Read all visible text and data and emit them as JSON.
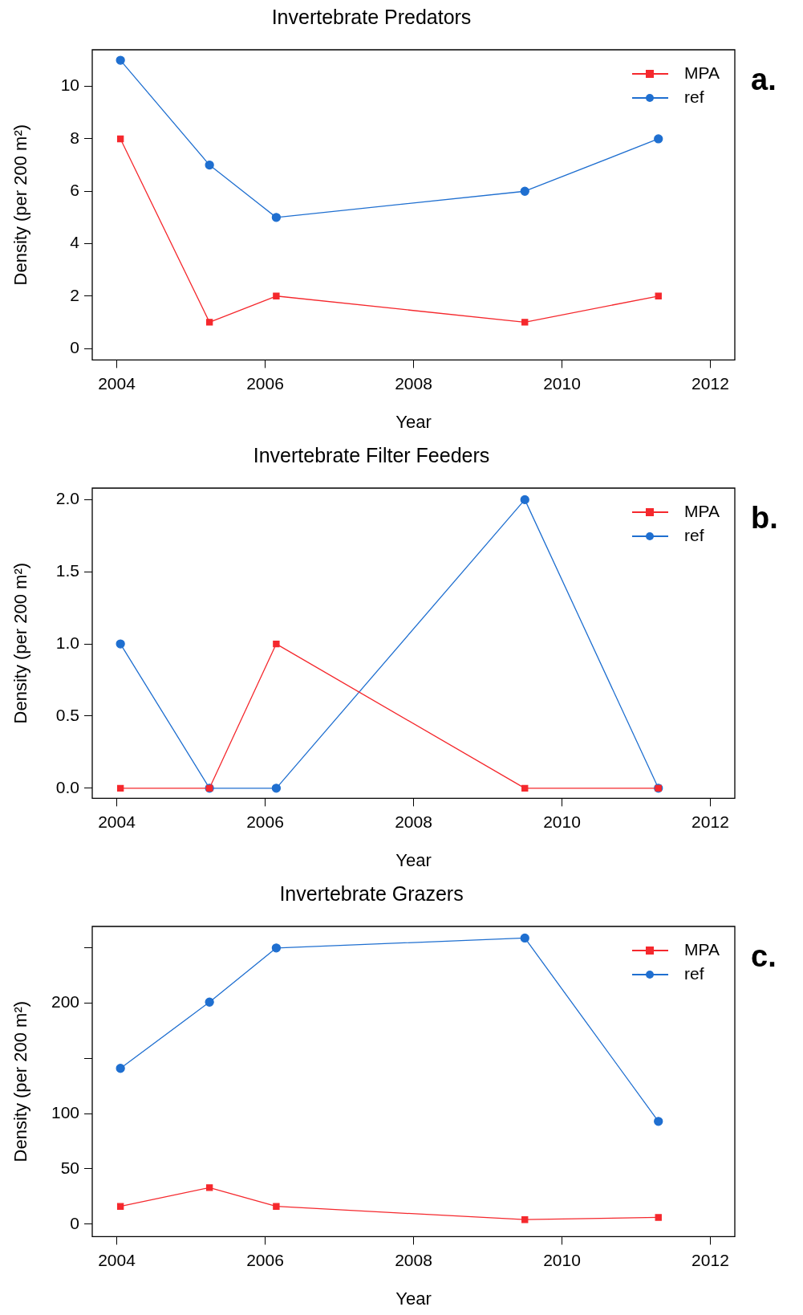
{
  "chart_data": [
    {
      "type": "line",
      "title": "Invertebrate Predators",
      "xlabel": "Year",
      "ylabel": "Density (per 200 m²)",
      "annotations": [
        "a."
      ],
      "x": [
        2004.05,
        2005.25,
        2006.15,
        2009.5,
        2011.3
      ],
      "series": [
        {
          "name": "MPA",
          "color": "#f5282d",
          "marker": "square",
          "values": [
            8,
            1,
            2,
            1,
            2
          ]
        },
        {
          "name": "ref",
          "color": "#1f6fd0",
          "marker": "circle",
          "values": [
            11,
            7,
            5,
            6,
            8
          ]
        }
      ],
      "xlim": [
        2003.67,
        2012.33
      ],
      "xticks": [
        2004,
        2006,
        2008,
        2010,
        2012
      ],
      "ylim": [
        -0.44,
        11.4
      ],
      "yticks": [
        0,
        2,
        4,
        6,
        8,
        10
      ],
      "grid": false,
      "legend": "top right",
      "line_style": "solid"
    },
    {
      "type": "line",
      "title": "Invertebrate Filter Feeders",
      "xlabel": "Year",
      "ylabel": "Density (per 200 m²)",
      "annotations": [
        "b."
      ],
      "x": [
        2004.05,
        2005.25,
        2006.15,
        2009.5,
        2011.3
      ],
      "series": [
        {
          "name": "MPA",
          "color": "#f5282d",
          "marker": "square",
          "values": [
            0,
            0,
            1,
            0,
            0
          ]
        },
        {
          "name": "ref",
          "color": "#1f6fd0",
          "marker": "circle",
          "values": [
            1,
            0,
            0,
            2,
            0
          ]
        }
      ],
      "xlim": [
        2003.67,
        2012.33
      ],
      "xticks": [
        2004,
        2006,
        2008,
        2010,
        2012
      ],
      "ylim": [
        -0.07,
        2.08
      ],
      "yticks": [
        "0.0",
        {
          "value": 0.5,
          "label": "0.5"
        },
        {
          "value": 1,
          "label": "1.0"
        },
        {
          "value": 1.5,
          "label": "1.5"
        },
        {
          "value": 2,
          "label": "2.0"
        }
      ],
      "grid": false,
      "legend": "top right",
      "line_style": "solid"
    },
    {
      "type": "line",
      "title": "Invertebrate Grazers",
      "xlabel": "Year",
      "ylabel": "Density (per 200 m²)",
      "annotations": [
        "c."
      ],
      "x": [
        2004.05,
        2005.25,
        2006.15,
        2009.5,
        2011.3
      ],
      "series": [
        {
          "name": "MPA",
          "color": "#f5282d",
          "marker": "square",
          "values": [
            16,
            33,
            16,
            4,
            6
          ]
        },
        {
          "name": "ref",
          "color": "#1f6fd0",
          "marker": "circle",
          "values": [
            141,
            201,
            250,
            259,
            93
          ]
        }
      ],
      "xlim": [
        2003.67,
        2012.33
      ],
      "xticks": [
        2004,
        2006,
        2008,
        2010,
        2012
      ],
      "ylim": [
        -11.4,
        269.5
      ],
      "yticks": [
        0,
        50,
        100,
        {
          "value": 150,
          "label": null
        },
        200,
        {
          "value": 250,
          "label": null
        }
      ],
      "grid": false,
      "legend": "top right",
      "line_style": "solid"
    }
  ]
}
